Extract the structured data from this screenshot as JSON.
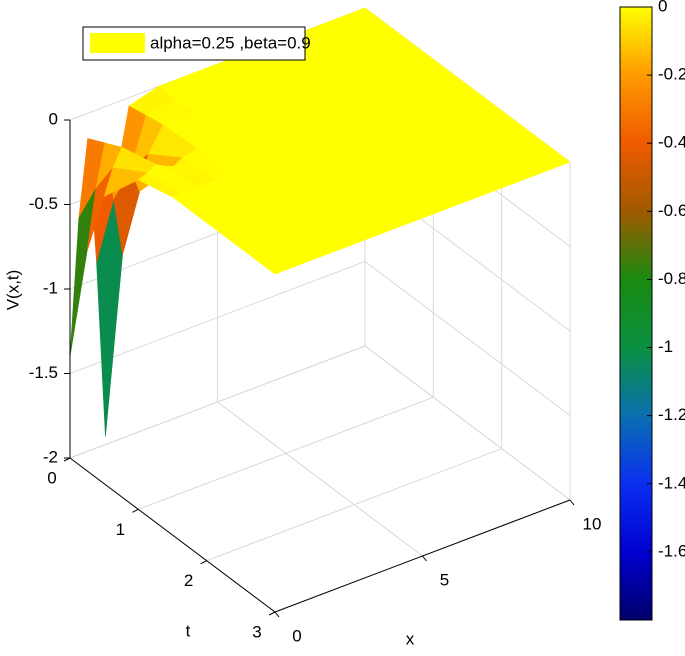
{
  "chart_data": {
    "type": "surface",
    "zlabel": "V(x,t)",
    "xlabel": "x",
    "ylabel": "t",
    "x": [
      0,
      0.3,
      0.6,
      0.9,
      1.2,
      1.5,
      2,
      3,
      4,
      5,
      6,
      7,
      8,
      9,
      10
    ],
    "t": [
      0,
      0.25,
      0.5,
      1,
      1.5,
      2,
      2.5,
      3
    ],
    "z": [
      [
        -1.4,
        -0.6,
        -0.15,
        -0.9,
        -1.95,
        -0.5,
        -0.05,
        0,
        0,
        0,
        0,
        0,
        0,
        0,
        0
      ],
      [
        -0.7,
        -0.35,
        -0.1,
        -0.45,
        -0.8,
        -0.3,
        -0.03,
        0,
        0,
        0,
        0,
        0,
        0,
        0,
        0
      ],
      [
        -0.3,
        -0.15,
        -0.05,
        -0.2,
        -0.35,
        -0.15,
        -0.01,
        0,
        0,
        0,
        0,
        0,
        0,
        0,
        0
      ],
      [
        -0.05,
        -0.03,
        0,
        -0.03,
        -0.05,
        -0.02,
        0,
        0,
        0,
        0,
        0,
        0,
        0,
        0,
        0
      ],
      [
        0,
        0,
        0,
        0,
        0,
        0,
        0,
        0,
        0,
        0,
        0,
        0,
        0,
        0,
        0
      ],
      [
        0,
        0,
        0,
        0,
        0,
        0,
        0,
        0,
        0,
        0,
        0,
        0,
        0,
        0,
        0
      ],
      [
        0,
        0,
        0,
        0,
        0,
        0,
        0,
        0,
        0,
        0,
        0,
        0,
        0,
        0,
        0
      ],
      [
        0,
        0,
        0,
        0,
        0,
        0,
        0,
        0,
        0,
        0,
        0,
        0,
        0,
        0,
        0
      ]
    ],
    "xlim": [
      0,
      10
    ],
    "xticks": [
      0,
      5,
      10
    ],
    "tlim": [
      0,
      3
    ],
    "tticks": [
      0,
      1,
      2,
      3
    ],
    "zlim": [
      -2,
      0
    ],
    "zticks": [
      -2,
      -1.5,
      -1,
      -0.5,
      0
    ],
    "grid": true,
    "series": [
      {
        "name": "alpha=0.25 ,beta=0.9",
        "color": "#ffff00"
      }
    ],
    "clim": [
      -1.8,
      0
    ],
    "cticks": [
      0,
      -0.2,
      -0.4,
      -0.6,
      -0.8,
      -1,
      -1.2,
      -1.4,
      -1.6
    ],
    "colormap": [
      "#00006a",
      "#0000d0",
      "#0a2ff0",
      "#0a70b0",
      "#0a9040",
      "#1a8a10",
      "#a05a00",
      "#f05a00",
      "#ff9a00",
      "#ffff00"
    ]
  }
}
